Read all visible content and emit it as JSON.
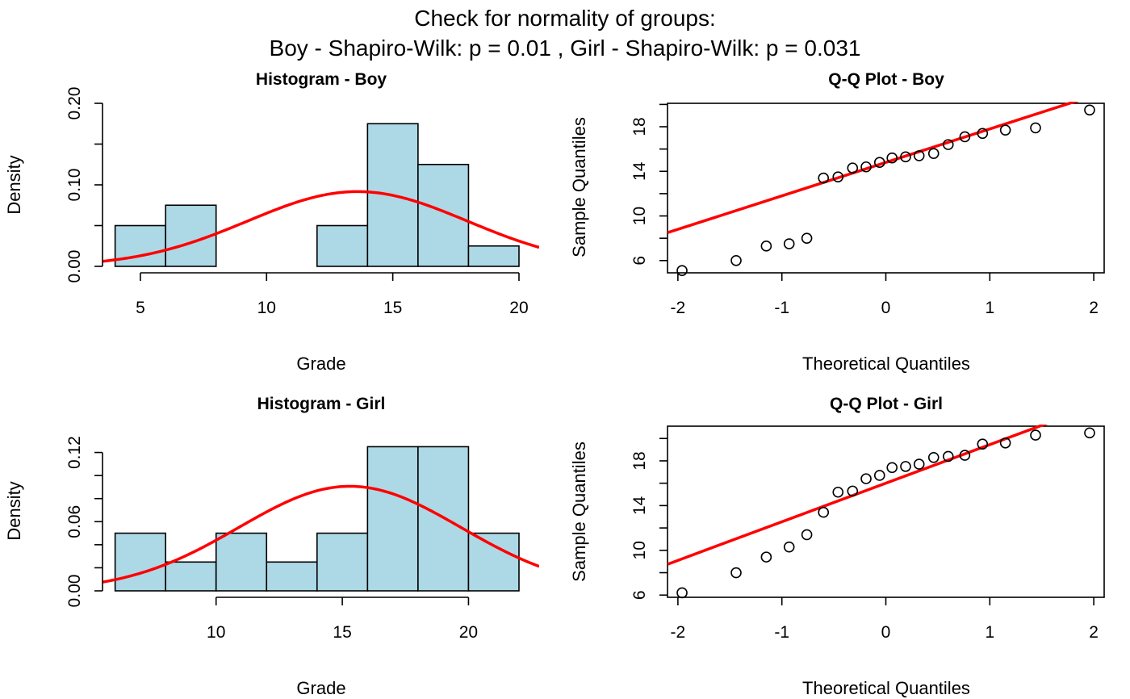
{
  "figure": {
    "title_line1": "Check for normality of groups:",
    "title_line2": "Boy  - Shapiro-Wilk: p =  0.01 ,  Girl  - Shapiro-Wilk: p =  0.031"
  },
  "colors": {
    "bar_fill": "#add8e6",
    "curve": "#ff0000",
    "ink": "#000000"
  },
  "chart_data": [
    {
      "type": "bar",
      "variant": "histogram",
      "title": "Histogram - Boy",
      "xlabel": "Grade",
      "ylabel": "Density",
      "xlim": [
        3.5,
        20.8
      ],
      "ylim": [
        0,
        0.2
      ],
      "xticks": [
        5,
        10,
        15,
        20
      ],
      "yticks": [
        0.0,
        0.05,
        0.1,
        0.15,
        0.2
      ],
      "ytick_labels": [
        "0.00",
        "",
        "0.10",
        "",
        "0.20"
      ],
      "bins": [
        {
          "x0": 4,
          "x1": 6,
          "density": 0.05
        },
        {
          "x0": 6,
          "x1": 8,
          "density": 0.075
        },
        {
          "x0": 8,
          "x1": 10,
          "density": 0
        },
        {
          "x0": 10,
          "x1": 12,
          "density": 0
        },
        {
          "x0": 12,
          "x1": 14,
          "density": 0.05
        },
        {
          "x0": 14,
          "x1": 16,
          "density": 0.175
        },
        {
          "x0": 16,
          "x1": 18,
          "density": 0.125
        },
        {
          "x0": 18,
          "x1": 20,
          "density": 0.025
        }
      ],
      "normal_curve": {
        "mean": 13.6,
        "sd": 4.35
      }
    },
    {
      "type": "scatter",
      "variant": "qq",
      "title": "Q-Q Plot - Boy",
      "xlabel": "Theoretical Quantiles",
      "ylabel": "Sample Quantiles",
      "xlim": [
        -2.1,
        2.1
      ],
      "ylim": [
        4.9,
        20.1
      ],
      "xticks": [
        -2,
        -1,
        0,
        1,
        2
      ],
      "yticks": [
        6,
        8,
        10,
        12,
        14,
        16,
        18,
        20
      ],
      "ytick_labels": [
        "6",
        "",
        "10",
        "",
        "14",
        "",
        "18",
        ""
      ],
      "points": [
        [
          -1.96,
          5.1
        ],
        [
          -1.44,
          6.0
        ],
        [
          -1.15,
          7.3
        ],
        [
          -0.93,
          7.5
        ],
        [
          -0.76,
          8.0
        ],
        [
          -0.6,
          13.4
        ],
        [
          -0.46,
          13.5
        ],
        [
          -0.32,
          14.3
        ],
        [
          -0.19,
          14.4
        ],
        [
          -0.06,
          14.8
        ],
        [
          0.06,
          15.2
        ],
        [
          0.19,
          15.3
        ],
        [
          0.32,
          15.4
        ],
        [
          0.46,
          15.6
        ],
        [
          0.6,
          16.4
        ],
        [
          0.76,
          17.1
        ],
        [
          0.93,
          17.4
        ],
        [
          1.15,
          17.7
        ],
        [
          1.44,
          17.9
        ],
        [
          1.96,
          19.5
        ]
      ],
      "qq_line": {
        "intercept": 14.8,
        "slope": 3.0
      }
    },
    {
      "type": "bar",
      "variant": "histogram",
      "title": "Histogram - Girl",
      "xlabel": "Grade",
      "ylabel": "Density",
      "xlim": [
        5.5,
        22.8
      ],
      "ylim": [
        0,
        0.14
      ],
      "xticks": [
        10,
        15,
        20
      ],
      "yticks": [
        0.0,
        0.02,
        0.04,
        0.06,
        0.08,
        0.1,
        0.12
      ],
      "ytick_labels": [
        "0.00",
        "",
        "",
        "0.06",
        "",
        "",
        "0.12"
      ],
      "bins": [
        {
          "x0": 6,
          "x1": 8,
          "density": 0.05
        },
        {
          "x0": 8,
          "x1": 10,
          "density": 0.025
        },
        {
          "x0": 10,
          "x1": 12,
          "density": 0.05
        },
        {
          "x0": 12,
          "x1": 14,
          "density": 0.025
        },
        {
          "x0": 14,
          "x1": 16,
          "density": 0.05
        },
        {
          "x0": 16,
          "x1": 18,
          "density": 0.125
        },
        {
          "x0": 18,
          "x1": 20,
          "density": 0.125
        },
        {
          "x0": 20,
          "x1": 22,
          "density": 0.05
        }
      ],
      "normal_curve": {
        "mean": 15.3,
        "sd": 4.4
      }
    },
    {
      "type": "scatter",
      "variant": "qq",
      "title": "Q-Q Plot - Girl",
      "xlabel": "Theoretical Quantiles",
      "ylabel": "Sample Quantiles",
      "xlim": [
        -2.1,
        2.1
      ],
      "ylim": [
        5.8,
        21.1
      ],
      "xticks": [
        -2,
        -1,
        0,
        1,
        2
      ],
      "yticks": [
        6,
        8,
        10,
        12,
        14,
        16,
        18,
        20
      ],
      "ytick_labels": [
        "6",
        "",
        "10",
        "",
        "14",
        "",
        "18",
        ""
      ],
      "points": [
        [
          -1.96,
          6.2
        ],
        [
          -1.44,
          8.0
        ],
        [
          -1.15,
          9.4
        ],
        [
          -0.93,
          10.3
        ],
        [
          -0.76,
          11.4
        ],
        [
          -0.6,
          13.4
        ],
        [
          -0.46,
          15.2
        ],
        [
          -0.32,
          15.3
        ],
        [
          -0.19,
          16.4
        ],
        [
          -0.06,
          16.7
        ],
        [
          0.06,
          17.4
        ],
        [
          0.19,
          17.5
        ],
        [
          0.32,
          17.7
        ],
        [
          0.46,
          18.3
        ],
        [
          0.6,
          18.4
        ],
        [
          0.76,
          18.5
        ],
        [
          0.93,
          19.5
        ],
        [
          1.15,
          19.6
        ],
        [
          1.44,
          20.3
        ],
        [
          1.96,
          20.5
        ]
      ],
      "qq_line": {
        "intercept": 16.0,
        "slope": 3.45
      }
    }
  ]
}
